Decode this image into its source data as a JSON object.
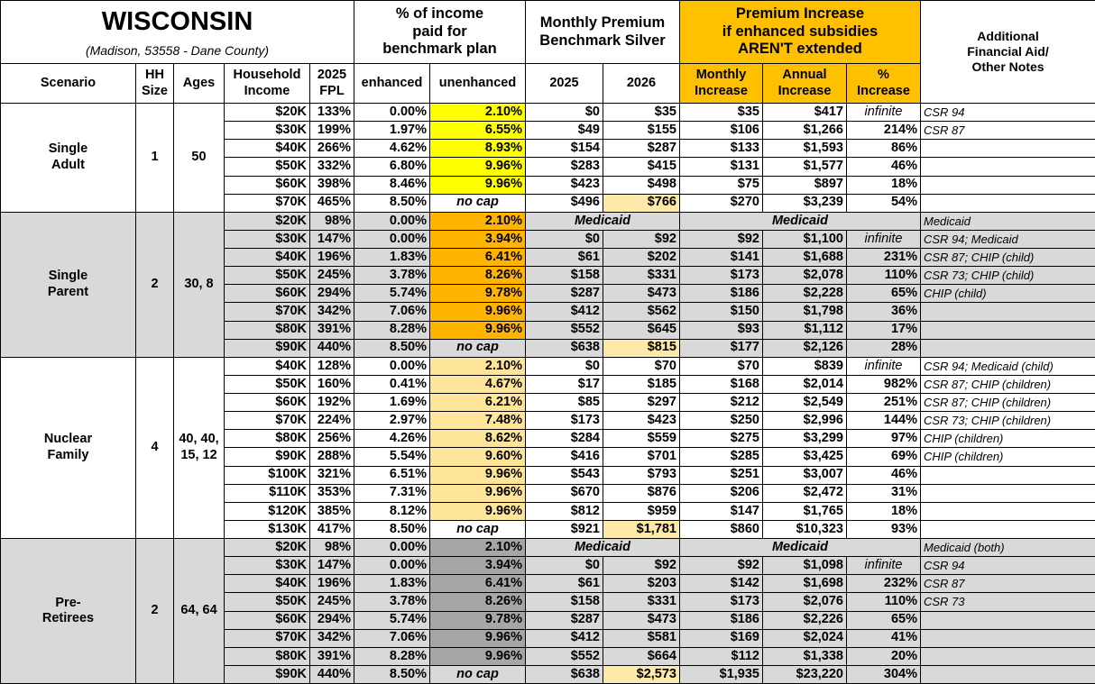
{
  "header": {
    "title": "WISCONSIN",
    "subtitle": "(Madison, 53558 - Dane County)",
    "pct_income": "% of income\npaid for\nbenchmark plan",
    "premium": "Monthly Premium\nBenchmark Silver",
    "increase": "Premium Increase\nif enhanced subsidies\nAREN'T extended",
    "notes": "Additional\nFinancial Aid/\nOther Notes"
  },
  "columns": [
    "Scenario",
    "HH\nSize",
    "Ages",
    "Household\nIncome",
    "2025\nFPL",
    "enhanced",
    "unenhanced",
    "2025",
    "2026",
    "Monthly\nIncrease",
    "Annual\nIncrease",
    "%\nIncrease"
  ],
  "groups": [
    {
      "scenario": "Single\nAdult",
      "hh_size": "1",
      "ages": "50",
      "rows": [
        {
          "income": "$20K",
          "fpl": "133%",
          "enhanced": "0.00%",
          "unenhanced": "2.10%",
          "p2025": "$0",
          "p2026": "$35",
          "monthly": "$35",
          "annual": "$417",
          "pct": "infinite",
          "note": "CSR 94"
        },
        {
          "income": "$30K",
          "fpl": "199%",
          "enhanced": "1.97%",
          "unenhanced": "6.55%",
          "p2025": "$49",
          "p2026": "$155",
          "monthly": "$106",
          "annual": "$1,266",
          "pct": "214%",
          "note": "CSR 87"
        },
        {
          "income": "$40K",
          "fpl": "266%",
          "enhanced": "4.62%",
          "unenhanced": "8.93%",
          "p2025": "$154",
          "p2026": "$287",
          "monthly": "$133",
          "annual": "$1,593",
          "pct": "86%"
        },
        {
          "income": "$50K",
          "fpl": "332%",
          "enhanced": "6.80%",
          "unenhanced": "9.96%",
          "p2025": "$283",
          "p2026": "$415",
          "monthly": "$131",
          "annual": "$1,577",
          "pct": "46%"
        },
        {
          "income": "$60K",
          "fpl": "398%",
          "enhanced": "8.46%",
          "unenhanced": "9.96%",
          "p2025": "$423",
          "p2026": "$498",
          "monthly": "$75",
          "annual": "$897",
          "pct": "18%"
        },
        {
          "income": "$70K",
          "fpl": "465%",
          "enhanced": "8.50%",
          "unenhanced": "no cap",
          "p2025": "$496",
          "p2026": "$766",
          "monthly": "$270",
          "annual": "$3,239",
          "pct": "54%"
        }
      ]
    },
    {
      "scenario": "Single\nParent",
      "hh_size": "2",
      "ages": "30, 8",
      "rows": [
        {
          "income": "$20K",
          "fpl": "98%",
          "enhanced": "0.00%",
          "unenhanced": "2.10%",
          "premium": "Medicaid",
          "increase": "Medicaid",
          "note": "Medicaid"
        },
        {
          "income": "$30K",
          "fpl": "147%",
          "enhanced": "0.00%",
          "unenhanced": "3.94%",
          "p2025": "$0",
          "p2026": "$92",
          "monthly": "$92",
          "annual": "$1,100",
          "pct": "infinite",
          "note": "CSR 94; Medicaid"
        },
        {
          "income": "$40K",
          "fpl": "196%",
          "enhanced": "1.83%",
          "unenhanced": "6.41%",
          "p2025": "$61",
          "p2026": "$202",
          "monthly": "$141",
          "annual": "$1,688",
          "pct": "231%",
          "note": "CSR 87; CHIP (child)"
        },
        {
          "income": "$50K",
          "fpl": "245%",
          "enhanced": "3.78%",
          "unenhanced": "8.26%",
          "p2025": "$158",
          "p2026": "$331",
          "monthly": "$173",
          "annual": "$2,078",
          "pct": "110%",
          "note": "CSR 73; CHIP (child)"
        },
        {
          "income": "$60K",
          "fpl": "294%",
          "enhanced": "5.74%",
          "unenhanced": "9.78%",
          "p2025": "$287",
          "p2026": "$473",
          "monthly": "$186",
          "annual": "$2,228",
          "pct": "65%",
          "note": "CHIP (child)"
        },
        {
          "income": "$70K",
          "fpl": "342%",
          "enhanced": "7.06%",
          "unenhanced": "9.96%",
          "p2025": "$412",
          "p2026": "$562",
          "monthly": "$150",
          "annual": "$1,798",
          "pct": "36%"
        },
        {
          "income": "$80K",
          "fpl": "391%",
          "enhanced": "8.28%",
          "unenhanced": "9.96%",
          "p2025": "$552",
          "p2026": "$645",
          "monthly": "$93",
          "annual": "$1,112",
          "pct": "17%"
        },
        {
          "income": "$90K",
          "fpl": "440%",
          "enhanced": "8.50%",
          "unenhanced": "no cap",
          "p2025": "$638",
          "p2026": "$815",
          "monthly": "$177",
          "annual": "$2,126",
          "pct": "28%"
        }
      ]
    },
    {
      "scenario": "Nuclear\nFamily",
      "hh_size": "4",
      "ages": "40, 40,\n15, 12",
      "rows": [
        {
          "income": "$40K",
          "fpl": "128%",
          "enhanced": "0.00%",
          "unenhanced": "2.10%",
          "p2025": "$0",
          "p2026": "$70",
          "monthly": "$70",
          "annual": "$839",
          "pct": "infinite",
          "note": "CSR 94; Medicaid (child)"
        },
        {
          "income": "$50K",
          "fpl": "160%",
          "enhanced": "0.41%",
          "unenhanced": "4.67%",
          "p2025": "$17",
          "p2026": "$185",
          "monthly": "$168",
          "annual": "$2,014",
          "pct": "982%",
          "note": "CSR 87; CHIP (children)"
        },
        {
          "income": "$60K",
          "fpl": "192%",
          "enhanced": "1.69%",
          "unenhanced": "6.21%",
          "p2025": "$85",
          "p2026": "$297",
          "monthly": "$212",
          "annual": "$2,549",
          "pct": "251%",
          "note": "CSR 87; CHIP (children)"
        },
        {
          "income": "$70K",
          "fpl": "224%",
          "enhanced": "2.97%",
          "unenhanced": "7.48%",
          "p2025": "$173",
          "p2026": "$423",
          "monthly": "$250",
          "annual": "$2,996",
          "pct": "144%",
          "note": "CSR 73; CHIP (children)"
        },
        {
          "income": "$80K",
          "fpl": "256%",
          "enhanced": "4.26%",
          "unenhanced": "8.62%",
          "p2025": "$284",
          "p2026": "$559",
          "monthly": "$275",
          "annual": "$3,299",
          "pct": "97%",
          "note": "CHIP (children)"
        },
        {
          "income": "$90K",
          "fpl": "288%",
          "enhanced": "5.54%",
          "unenhanced": "9.60%",
          "p2025": "$416",
          "p2026": "$701",
          "monthly": "$285",
          "annual": "$3,425",
          "pct": "69%",
          "note": "CHIP (children)"
        },
        {
          "income": "$100K",
          "fpl": "321%",
          "enhanced": "6.51%",
          "unenhanced": "9.96%",
          "p2025": "$543",
          "p2026": "$793",
          "monthly": "$251",
          "annual": "$3,007",
          "pct": "46%"
        },
        {
          "income": "$110K",
          "fpl": "353%",
          "enhanced": "7.31%",
          "unenhanced": "9.96%",
          "p2025": "$670",
          "p2026": "$876",
          "monthly": "$206",
          "annual": "$2,472",
          "pct": "31%"
        },
        {
          "income": "$120K",
          "fpl": "385%",
          "enhanced": "8.12%",
          "unenhanced": "9.96%",
          "p2025": "$812",
          "p2026": "$959",
          "monthly": "$147",
          "annual": "$1,765",
          "pct": "18%"
        },
        {
          "income": "$130K",
          "fpl": "417%",
          "enhanced": "8.50%",
          "unenhanced": "no cap",
          "p2025": "$921",
          "p2026": "$1,781",
          "monthly": "$860",
          "annual": "$10,323",
          "pct": "93%"
        }
      ]
    },
    {
      "scenario": "Pre-\nRetirees",
      "hh_size": "2",
      "ages": "64, 64",
      "rows": [
        {
          "income": "$20K",
          "fpl": "98%",
          "enhanced": "0.00%",
          "unenhanced": "2.10%",
          "premium": "Medicaid",
          "increase": "Medicaid",
          "note": "Medicaid (both)"
        },
        {
          "income": "$30K",
          "fpl": "147%",
          "enhanced": "0.00%",
          "unenhanced": "3.94%",
          "p2025": "$0",
          "p2026": "$92",
          "monthly": "$92",
          "annual": "$1,098",
          "pct": "infinite",
          "note": "CSR 94"
        },
        {
          "income": "$40K",
          "fpl": "196%",
          "enhanced": "1.83%",
          "unenhanced": "6.41%",
          "p2025": "$61",
          "p2026": "$203",
          "monthly": "$142",
          "annual": "$1,698",
          "pct": "232%",
          "note": "CSR 87"
        },
        {
          "income": "$50K",
          "fpl": "245%",
          "enhanced": "3.78%",
          "unenhanced": "8.26%",
          "p2025": "$158",
          "p2026": "$331",
          "monthly": "$173",
          "annual": "$2,076",
          "pct": "110%",
          "note": "CSR 73"
        },
        {
          "income": "$60K",
          "fpl": "294%",
          "enhanced": "5.74%",
          "unenhanced": "9.78%",
          "p2025": "$287",
          "p2026": "$473",
          "monthly": "$186",
          "annual": "$2,226",
          "pct": "65%"
        },
        {
          "income": "$70K",
          "fpl": "342%",
          "enhanced": "7.06%",
          "unenhanced": "9.96%",
          "p2025": "$412",
          "p2026": "$581",
          "monthly": "$169",
          "annual": "$2,024",
          "pct": "41%"
        },
        {
          "income": "$80K",
          "fpl": "391%",
          "enhanced": "8.28%",
          "unenhanced": "9.96%",
          "p2025": "$552",
          "p2026": "$664",
          "monthly": "$112",
          "annual": "$1,338",
          "pct": "20%"
        },
        {
          "income": "$90K",
          "fpl": "440%",
          "enhanced": "8.50%",
          "unenhanced": "no cap",
          "p2025": "$638",
          "p2026": "$2,573",
          "monthly": "$1,935",
          "annual": "$23,220",
          "pct": "304%"
        }
      ]
    }
  ]
}
